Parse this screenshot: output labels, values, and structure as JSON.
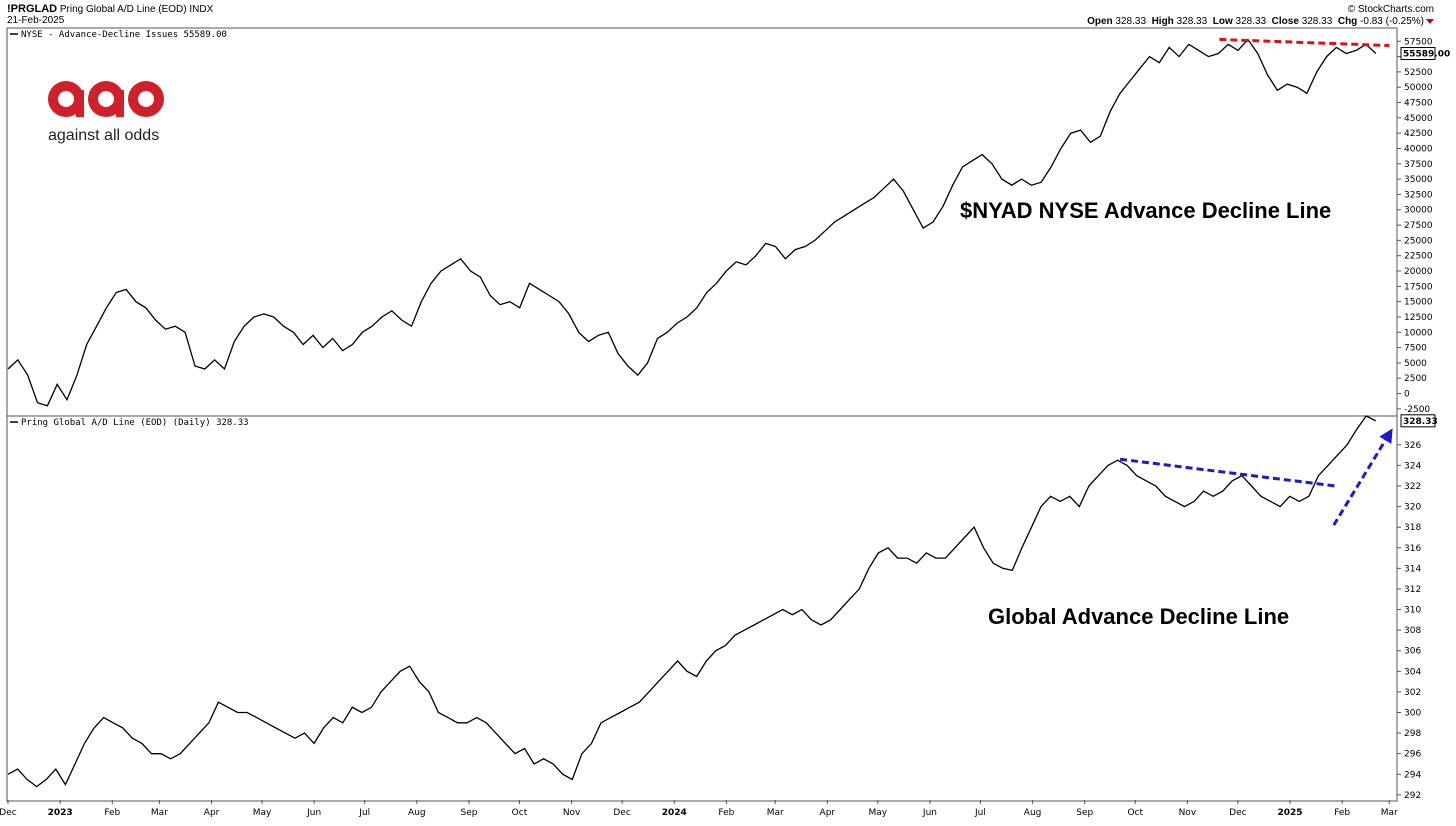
{
  "header": {
    "symbol": "!PRGLAD",
    "name": "Pring Global A/D Line (EOD)",
    "exchange": "INDX",
    "date": "21-Feb-2025",
    "brand": "© StockCharts.com",
    "ohlc": [
      {
        "label": "Open",
        "value": "328.33"
      },
      {
        "label": "High",
        "value": "328.33"
      },
      {
        "label": "Low",
        "value": "328.33"
      },
      {
        "label": "Close",
        "value": "328.33"
      },
      {
        "label": "Chg",
        "value": "-0.83 (-0.25%)"
      }
    ],
    "down_color": "#cc0000"
  },
  "logo": {
    "text": "against all odds",
    "color": "#d0202a"
  },
  "chart_data": [
    {
      "type": "line",
      "legend": "NYSE - Advance-Decline Issues 55589.00",
      "annotation": "$NYAD NYSE Advance Decline Line",
      "last_value_label": "55589.00",
      "ylim": [
        -3500,
        59500
      ],
      "yticks": [
        -2500,
        0,
        2500,
        5000,
        7500,
        10000,
        12500,
        15000,
        17500,
        20000,
        22500,
        25000,
        27500,
        30000,
        32500,
        35000,
        37500,
        40000,
        42500,
        45000,
        47500,
        50000,
        52500,
        55000,
        57500
      ],
      "line_color": "#000000",
      "trendline": {
        "color": "#dd1111",
        "x": [
          "2024-11-20",
          "2025-03-01"
        ],
        "y": [
          57800,
          56800
        ]
      },
      "series": [
        {
          "x_start": "2022-12-01",
          "x_end": "2025-02-21",
          "values": [
            4000,
            5500,
            3000,
            -1500,
            -2000,
            1500,
            -1000,
            3000,
            8000,
            11000,
            14000,
            16500,
            17000,
            15000,
            14000,
            12000,
            10500,
            11000,
            10000,
            4500,
            4000,
            5500,
            4000,
            8500,
            11000,
            12500,
            13000,
            12500,
            11000,
            10000,
            8000,
            9500,
            7500,
            9000,
            7000,
            8000,
            10000,
            11000,
            12500,
            13500,
            12000,
            11000,
            15000,
            18000,
            20000,
            21000,
            22000,
            20000,
            19000,
            16000,
            14500,
            15000,
            14000,
            18000,
            17000,
            16000,
            15000,
            13000,
            10000,
            8500,
            9500,
            10000,
            6500,
            4500,
            3000,
            5000,
            9000,
            10000,
            11500,
            12500,
            14000,
            16500,
            18000,
            20000,
            21500,
            21000,
            22500,
            24500,
            24000,
            22000,
            23500,
            24000,
            25000,
            26500,
            28000,
            29000,
            30000,
            31000,
            32000,
            33500,
            35000,
            33000,
            30000,
            27000,
            28000,
            30500,
            34000,
            37000,
            38000,
            39000,
            37500,
            35000,
            34000,
            35000,
            34000,
            34500,
            37000,
            40000,
            42500,
            43000,
            41000,
            42000,
            46000,
            49000,
            51000,
            53000,
            55000,
            54000,
            56500,
            55000,
            57000,
            56000,
            55000,
            55500,
            57000,
            56000,
            57800,
            55500,
            52000,
            49500,
            50500,
            50000,
            49000,
            52500,
            55000,
            56500,
            55500,
            56000,
            57000,
            55500
          ]
        }
      ],
      "x_ticks": [
        {
          "label": "Dec",
          "date": "2022-12-01"
        },
        {
          "label": "2023",
          "date": "2023-01-01"
        },
        {
          "label": "Feb",
          "date": "2023-02-01"
        },
        {
          "label": "Mar",
          "date": "2023-03-01"
        },
        {
          "label": "Apr",
          "date": "2023-04-01"
        },
        {
          "label": "May",
          "date": "2023-05-01"
        },
        {
          "label": "Jun",
          "date": "2023-06-01"
        },
        {
          "label": "Jul",
          "date": "2023-07-01"
        },
        {
          "label": "Aug",
          "date": "2023-08-01"
        },
        {
          "label": "Sep",
          "date": "2023-09-01"
        },
        {
          "label": "Oct",
          "date": "2023-10-01"
        },
        {
          "label": "Nov",
          "date": "2023-11-01"
        },
        {
          "label": "Dec",
          "date": "2023-12-01"
        },
        {
          "label": "2024",
          "date": "2024-01-01"
        },
        {
          "label": "Feb",
          "date": "2024-02-01"
        },
        {
          "label": "Mar",
          "date": "2024-03-01"
        },
        {
          "label": "Apr",
          "date": "2024-04-01"
        },
        {
          "label": "May",
          "date": "2024-05-01"
        },
        {
          "label": "Jun",
          "date": "2024-06-01"
        },
        {
          "label": "Jul",
          "date": "2024-07-01"
        },
        {
          "label": "Aug",
          "date": "2024-08-01"
        },
        {
          "label": "Sep",
          "date": "2024-09-01"
        },
        {
          "label": "Oct",
          "date": "2024-10-01"
        },
        {
          "label": "Nov",
          "date": "2024-11-01"
        },
        {
          "label": "Dec",
          "date": "2024-12-01"
        },
        {
          "label": "2025",
          "date": "2025-01-01"
        },
        {
          "label": "Feb",
          "date": "2025-02-01"
        },
        {
          "label": "Mar",
          "date": "2025-03-01"
        }
      ]
    },
    {
      "type": "line",
      "legend": "Pring Global A/D Line (EOD) (Daily) 328.33",
      "annotation": "Global Advance Decline Line",
      "last_value_label": "328.33",
      "ylim": [
        291.5,
        328.7
      ],
      "yticks": [
        292,
        294,
        296,
        298,
        300,
        302,
        304,
        306,
        308,
        310,
        312,
        314,
        316,
        318,
        320,
        322,
        324,
        326
      ],
      "line_color": "#000000",
      "trendline": {
        "color": "#1a1acc",
        "x": [
          "2024-09-22",
          "2025-01-28"
        ],
        "y": [
          324.6,
          322.0
        ]
      },
      "arrow": {
        "color": "#1a1acc",
        "x": [
          "2025-01-27",
          "2025-03-03"
        ],
        "y": [
          318.2,
          327.6
        ]
      },
      "series": [
        {
          "x_start": "2022-12-01",
          "x_end": "2025-02-21",
          "values": [
            294,
            294.5,
            293.5,
            292.8,
            293.5,
            294.5,
            293,
            295,
            297,
            298.5,
            299.5,
            299,
            298.5,
            297.5,
            297,
            296,
            296,
            295.5,
            296,
            297,
            298,
            299,
            301,
            300.5,
            300,
            300,
            299.5,
            299,
            298.5,
            298,
            297.5,
            298,
            297,
            298.5,
            299.5,
            299,
            300.5,
            300,
            300.5,
            302,
            303,
            304,
            304.5,
            303,
            302,
            300,
            299.5,
            299,
            299,
            299.5,
            299,
            298,
            297,
            296,
            296.5,
            295,
            295.5,
            295,
            294,
            293.5,
            296,
            297,
            299,
            299.5,
            300,
            300.5,
            301,
            302,
            303,
            304,
            305,
            304,
            303.5,
            305,
            306,
            306.5,
            307.5,
            308,
            308.5,
            309,
            309.5,
            310,
            309.5,
            310,
            309,
            308.5,
            309,
            310,
            311,
            312,
            314,
            315.5,
            316,
            315,
            315,
            314.5,
            315.5,
            315,
            315,
            316,
            317,
            318,
            316,
            314.5,
            314,
            313.8,
            316,
            318,
            320,
            321,
            320.5,
            321,
            320,
            322,
            323,
            324,
            324.5,
            324,
            323,
            322.5,
            322,
            321,
            320.5,
            320,
            320.5,
            321.5,
            321,
            321.5,
            322.5,
            323,
            322,
            321,
            320.5,
            320,
            321,
            320.5,
            321,
            323,
            324,
            325,
            326,
            327.5,
            328.8,
            328.33
          ]
        }
      ],
      "x_ticks_ref": 0
    }
  ],
  "x_axis_labels": [
    "Dec",
    "2023",
    "Feb",
    "Mar",
    "Apr",
    "May",
    "Jun",
    "Jul",
    "Aug",
    "Sep",
    "Oct",
    "Nov",
    "Dec",
    "2024",
    "Feb",
    "Mar",
    "Apr",
    "May",
    "Jun",
    "Jul",
    "Aug",
    "Sep",
    "Oct",
    "Nov",
    "Dec",
    "2025",
    "Feb",
    "Mar"
  ]
}
